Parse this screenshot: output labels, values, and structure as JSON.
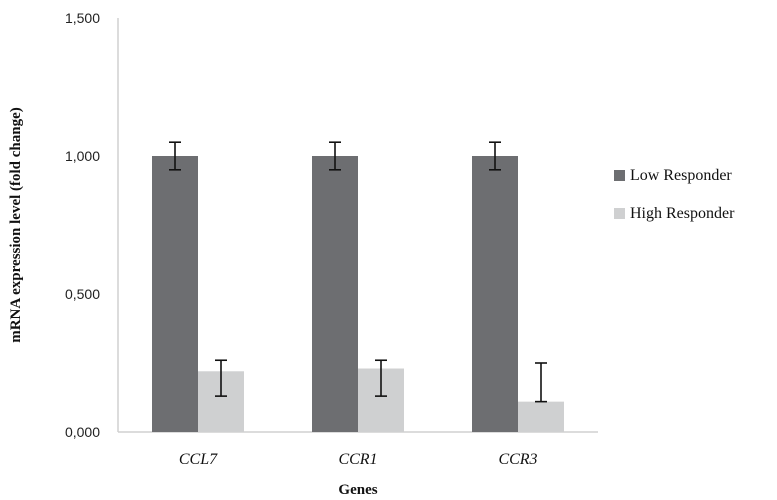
{
  "chart_data": {
    "type": "bar",
    "title": "",
    "xlabel": "Genes",
    "ylabel": "mRNA expression level (fold change)",
    "ylim": [
      0,
      1.5
    ],
    "y_ticks": [
      {
        "value": 0,
        "label": "0,000"
      },
      {
        "value": 0.5,
        "label": "0,500"
      },
      {
        "value": 1.0,
        "label": "1,000"
      },
      {
        "value": 1.5,
        "label": "1,500"
      }
    ],
    "categories": [
      "CCL7",
      "CCR1",
      "CCR3"
    ],
    "series": [
      {
        "name": "Low Responder",
        "color": "#6d6e71",
        "values": [
          1.0,
          1.0,
          1.0
        ],
        "error": [
          0.05,
          0.05,
          0.05
        ]
      },
      {
        "name": "High Responder",
        "color": "#cfd0d1",
        "values": [
          0.22,
          0.23,
          0.11
        ],
        "error_low": [
          0.09,
          0.1,
          0.0
        ],
        "error_high": [
          0.04,
          0.03,
          0.14
        ]
      }
    ],
    "grid": false,
    "legend_position": "right",
    "axis_color": "#d0d0d0",
    "error_bar_color": "#111111"
  }
}
